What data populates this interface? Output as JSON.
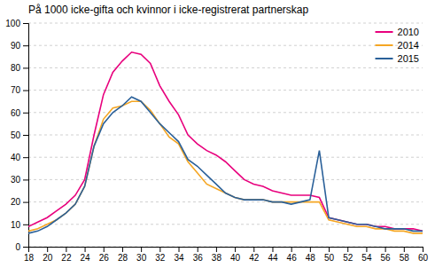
{
  "chart_data": {
    "type": "line",
    "title": "På 1000 icke-gifta och kvinnor i icke-registrerat partnerskap",
    "x": [
      18,
      19,
      20,
      21,
      22,
      23,
      24,
      25,
      26,
      27,
      28,
      29,
      30,
      31,
      32,
      33,
      34,
      35,
      36,
      37,
      38,
      39,
      40,
      41,
      42,
      43,
      44,
      45,
      46,
      47,
      48,
      49,
      50,
      51,
      52,
      53,
      54,
      55,
      56,
      57,
      58,
      59,
      60
    ],
    "series": [
      {
        "name": "2010",
        "color": "#e8007d",
        "values": [
          9,
          11,
          13,
          16,
          19,
          23,
          30,
          50,
          68,
          78,
          83,
          87,
          86,
          82,
          72,
          65,
          59,
          50,
          46,
          43,
          41,
          38,
          34,
          30,
          28,
          27,
          25,
          24,
          23,
          23,
          23,
          22,
          13,
          12,
          11,
          10,
          10,
          9,
          9,
          8,
          8,
          8,
          7
        ]
      },
      {
        "name": "2014",
        "color": "#f5a623",
        "values": [
          7,
          8,
          10,
          12,
          15,
          19,
          27,
          45,
          57,
          62,
          63,
          65,
          65,
          61,
          55,
          49,
          46,
          38,
          33,
          28,
          26,
          24,
          22,
          21,
          21,
          21,
          20,
          20,
          20,
          20,
          20,
          20,
          12,
          11,
          10,
          9,
          9,
          8,
          8,
          7,
          7,
          6,
          6
        ]
      },
      {
        "name": "2015",
        "color": "#2a6099",
        "values": [
          6,
          7,
          9,
          12,
          15,
          19,
          27,
          45,
          55,
          60,
          63,
          67,
          65,
          60,
          55,
          51,
          47,
          39,
          36,
          32,
          28,
          24,
          22,
          21,
          21,
          21,
          20,
          20,
          19,
          20,
          21,
          43,
          13,
          12,
          11,
          10,
          10,
          9,
          8,
          8,
          8,
          7,
          7
        ]
      }
    ],
    "xlim": [
      18,
      60
    ],
    "ylim": [
      0,
      100
    ],
    "xticks": [
      18,
      20,
      22,
      24,
      26,
      28,
      30,
      32,
      34,
      36,
      38,
      40,
      42,
      44,
      46,
      48,
      50,
      52,
      54,
      56,
      58,
      60
    ],
    "yticks": [
      0,
      10,
      20,
      30,
      40,
      50,
      60,
      70,
      80,
      90,
      100
    ],
    "grid": true,
    "legend": "upper right"
  }
}
